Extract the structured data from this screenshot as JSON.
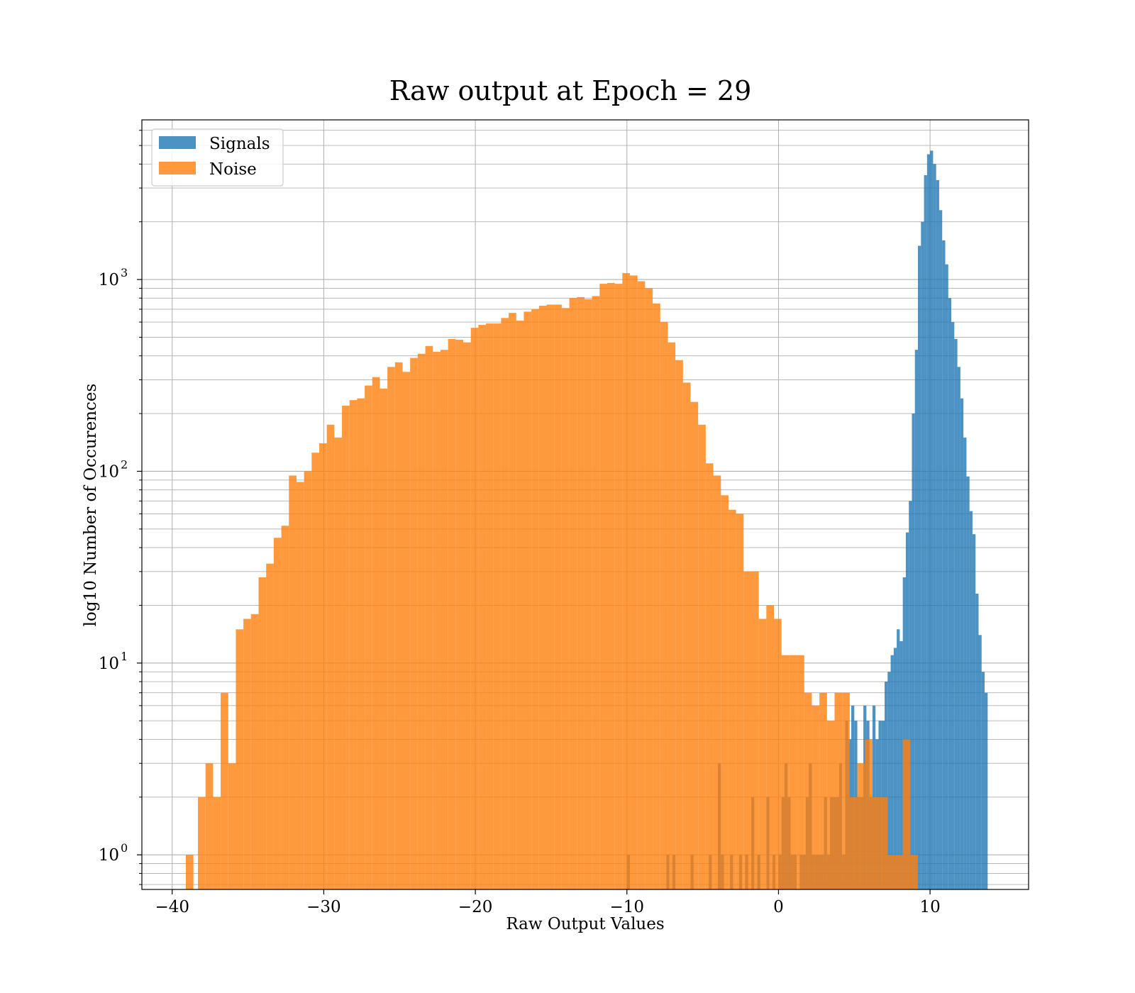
{
  "chart_data": {
    "type": "histogram",
    "title": "Raw output at Epoch = 29",
    "xlabel": "Raw Output Values",
    "ylabel": "log10 Number of Occurences",
    "xlim": [
      -42,
      16.5
    ],
    "ylim": [
      0.66,
      6800
    ],
    "yscale": "log",
    "grid": true,
    "x_ticks": [
      -40,
      -30,
      -20,
      -10,
      0,
      10
    ],
    "x_tick_labels": [
      "−40",
      "−30",
      "−20",
      "−10",
      "0",
      "10"
    ],
    "y_ticks": [
      1,
      10,
      100,
      1000
    ],
    "y_tick_labels": [
      {
        "base": "10",
        "exp": "0"
      },
      {
        "base": "10",
        "exp": "1"
      },
      {
        "base": "10",
        "exp": "2"
      },
      {
        "base": "10",
        "exp": "3"
      }
    ],
    "legend": {
      "placement": "top-left",
      "entries": [
        "Signals",
        "Noise"
      ]
    },
    "series": [
      {
        "name": "Signals",
        "color": "#1f77b4",
        "alpha": 0.8,
        "bins": [
          [
            -10.0,
            -9.8,
            1
          ],
          [
            -7.4,
            -7.2,
            1
          ],
          [
            -7.0,
            -6.8,
            1
          ],
          [
            -5.8,
            -5.6,
            1
          ],
          [
            -4.6,
            -4.4,
            1
          ],
          [
            -4.0,
            -3.8,
            3
          ],
          [
            -3.8,
            -3.6,
            1
          ],
          [
            -3.2,
            -3.0,
            1
          ],
          [
            -2.6,
            -2.4,
            1
          ],
          [
            -2.2,
            -2.0,
            1
          ],
          [
            -1.8,
            -1.6,
            2
          ],
          [
            -1.4,
            -1.2,
            1
          ],
          [
            -0.8,
            -0.6,
            2
          ],
          [
            -0.4,
            -0.2,
            1
          ],
          [
            0.0,
            0.2,
            1
          ],
          [
            0.2,
            0.4,
            2
          ],
          [
            0.4,
            0.6,
            3
          ],
          [
            0.6,
            0.8,
            2
          ],
          [
            0.8,
            1.0,
            1
          ],
          [
            1.0,
            1.2,
            1
          ],
          [
            1.4,
            1.6,
            1
          ],
          [
            1.6,
            1.8,
            1
          ],
          [
            1.8,
            2.0,
            2
          ],
          [
            2.0,
            2.2,
            3
          ],
          [
            2.2,
            2.4,
            1
          ],
          [
            2.4,
            2.6,
            1
          ],
          [
            2.6,
            2.8,
            1
          ],
          [
            2.8,
            3.0,
            1
          ],
          [
            3.0,
            3.2,
            2
          ],
          [
            3.2,
            3.4,
            1
          ],
          [
            3.4,
            3.6,
            2
          ],
          [
            3.6,
            3.8,
            2
          ],
          [
            3.8,
            4.0,
            2
          ],
          [
            4.0,
            4.2,
            3
          ],
          [
            4.2,
            4.4,
            1
          ],
          [
            4.4,
            4.6,
            5
          ],
          [
            4.6,
            4.8,
            4
          ],
          [
            4.8,
            5.0,
            6
          ],
          [
            5.0,
            5.2,
            5
          ],
          [
            5.2,
            5.4,
            2
          ],
          [
            5.4,
            5.6,
            2
          ],
          [
            5.6,
            5.8,
            6
          ],
          [
            5.8,
            6.0,
            5
          ],
          [
            6.0,
            6.2,
            2
          ],
          [
            6.2,
            6.4,
            6
          ],
          [
            6.4,
            6.6,
            4
          ],
          [
            6.6,
            6.8,
            5
          ],
          [
            6.8,
            7.0,
            5
          ],
          [
            7.0,
            7.2,
            8
          ],
          [
            7.2,
            7.4,
            9
          ],
          [
            7.4,
            7.6,
            11
          ],
          [
            7.6,
            7.8,
            12
          ],
          [
            7.8,
            8.0,
            15
          ],
          [
            8.0,
            8.2,
            13
          ],
          [
            8.2,
            8.4,
            28
          ],
          [
            8.4,
            8.6,
            48
          ],
          [
            8.6,
            8.8,
            70
          ],
          [
            8.8,
            9.0,
            200
          ],
          [
            9.0,
            9.2,
            430
          ],
          [
            9.2,
            9.4,
            1500
          ],
          [
            9.4,
            9.6,
            2000
          ],
          [
            9.6,
            9.8,
            3500
          ],
          [
            9.8,
            10.0,
            4500
          ],
          [
            10.0,
            10.2,
            4700
          ],
          [
            10.2,
            10.4,
            4000
          ],
          [
            10.4,
            10.6,
            3300
          ],
          [
            10.6,
            10.8,
            2300
          ],
          [
            10.8,
            11.0,
            1600
          ],
          [
            11.0,
            11.2,
            1200
          ],
          [
            11.2,
            11.4,
            800
          ],
          [
            11.4,
            11.6,
            600
          ],
          [
            11.6,
            11.8,
            490
          ],
          [
            11.8,
            12.0,
            350
          ],
          [
            12.0,
            12.2,
            240
          ],
          [
            12.2,
            12.4,
            150
          ],
          [
            12.4,
            12.6,
            94
          ],
          [
            12.6,
            12.8,
            62
          ],
          [
            12.8,
            13.0,
            47
          ],
          [
            13.0,
            13.2,
            23
          ],
          [
            13.2,
            13.4,
            14
          ],
          [
            13.4,
            13.6,
            9
          ],
          [
            13.6,
            13.8,
            7
          ]
        ]
      },
      {
        "name": "Noise",
        "color": "#ff7f0e",
        "alpha": 0.8,
        "bins": [
          [
            -39.1,
            -38.6,
            1
          ],
          [
            -38.3,
            -37.8,
            2
          ],
          [
            -37.8,
            -37.3,
            3
          ],
          [
            -37.3,
            -36.8,
            2
          ],
          [
            -36.8,
            -36.3,
            7
          ],
          [
            -36.3,
            -35.8,
            3
          ],
          [
            -35.8,
            -35.3,
            15
          ],
          [
            -35.3,
            -34.8,
            17
          ],
          [
            -34.8,
            -34.3,
            18
          ],
          [
            -34.3,
            -33.8,
            28
          ],
          [
            -33.8,
            -33.3,
            33
          ],
          [
            -33.3,
            -32.8,
            45
          ],
          [
            -32.8,
            -32.3,
            52
          ],
          [
            -32.3,
            -31.8,
            95
          ],
          [
            -31.8,
            -31.3,
            88
          ],
          [
            -31.3,
            -30.8,
            100
          ],
          [
            -30.8,
            -30.3,
            125
          ],
          [
            -30.3,
            -29.8,
            140
          ],
          [
            -29.8,
            -29.3,
            175
          ],
          [
            -29.3,
            -28.8,
            150
          ],
          [
            -28.8,
            -28.3,
            220
          ],
          [
            -28.3,
            -27.8,
            235
          ],
          [
            -27.8,
            -27.3,
            240
          ],
          [
            -27.3,
            -26.8,
            280
          ],
          [
            -26.8,
            -26.3,
            310
          ],
          [
            -26.3,
            -25.8,
            270
          ],
          [
            -25.8,
            -25.3,
            350
          ],
          [
            -25.3,
            -24.8,
            370
          ],
          [
            -24.8,
            -24.3,
            330
          ],
          [
            -24.3,
            -23.8,
            390
          ],
          [
            -23.8,
            -23.3,
            410
          ],
          [
            -23.3,
            -22.8,
            450
          ],
          [
            -22.8,
            -22.3,
            420
          ],
          [
            -22.3,
            -21.8,
            430
          ],
          [
            -21.8,
            -21.3,
            490
          ],
          [
            -21.3,
            -20.8,
            485
          ],
          [
            -20.8,
            -20.3,
            470
          ],
          [
            -20.3,
            -19.8,
            560
          ],
          [
            -19.8,
            -19.3,
            580
          ],
          [
            -19.3,
            -18.8,
            590
          ],
          [
            -18.8,
            -18.3,
            590
          ],
          [
            -18.3,
            -17.8,
            630
          ],
          [
            -17.8,
            -17.3,
            670
          ],
          [
            -17.3,
            -16.8,
            610
          ],
          [
            -16.8,
            -16.3,
            680
          ],
          [
            -16.3,
            -15.8,
            700
          ],
          [
            -15.8,
            -15.3,
            730
          ],
          [
            -15.3,
            -14.8,
            740
          ],
          [
            -14.8,
            -14.3,
            740
          ],
          [
            -14.3,
            -13.8,
            710
          ],
          [
            -13.8,
            -13.3,
            800
          ],
          [
            -13.3,
            -12.8,
            810
          ],
          [
            -12.8,
            -12.3,
            790
          ],
          [
            -12.3,
            -11.8,
            820
          ],
          [
            -11.8,
            -11.3,
            950
          ],
          [
            -11.3,
            -10.8,
            960
          ],
          [
            -10.8,
            -10.3,
            950
          ],
          [
            -10.3,
            -9.8,
            1080
          ],
          [
            -9.8,
            -9.3,
            1050
          ],
          [
            -9.3,
            -8.8,
            980
          ],
          [
            -8.8,
            -8.3,
            900
          ],
          [
            -8.3,
            -7.8,
            750
          ],
          [
            -7.8,
            -7.3,
            600
          ],
          [
            -7.3,
            -6.8,
            470
          ],
          [
            -6.8,
            -6.3,
            380
          ],
          [
            -6.3,
            -5.8,
            290
          ],
          [
            -5.8,
            -5.3,
            230
          ],
          [
            -5.3,
            -4.8,
            175
          ],
          [
            -4.8,
            -4.3,
            110
          ],
          [
            -4.3,
            -3.8,
            95
          ],
          [
            -3.8,
            -3.3,
            75
          ],
          [
            -3.3,
            -2.8,
            63
          ],
          [
            -2.8,
            -2.3,
            60
          ],
          [
            -2.3,
            -1.8,
            30
          ],
          [
            -1.8,
            -1.3,
            30
          ],
          [
            -1.3,
            -0.8,
            17
          ],
          [
            -0.8,
            -0.3,
            20
          ],
          [
            -0.3,
            0.2,
            17
          ],
          [
            0.2,
            0.7,
            11
          ],
          [
            0.7,
            1.2,
            11
          ],
          [
            1.2,
            1.7,
            11
          ],
          [
            1.7,
            2.2,
            7
          ],
          [
            2.2,
            2.7,
            6
          ],
          [
            2.7,
            3.2,
            7
          ],
          [
            3.2,
            3.7,
            5
          ],
          [
            3.7,
            4.2,
            7
          ],
          [
            4.2,
            4.7,
            7
          ],
          [
            4.7,
            5.2,
            2
          ],
          [
            5.2,
            5.7,
            3
          ],
          [
            5.7,
            6.2,
            4
          ],
          [
            6.2,
            6.7,
            2
          ],
          [
            6.7,
            7.2,
            2
          ],
          [
            7.2,
            7.7,
            1
          ],
          [
            7.7,
            8.2,
            1
          ],
          [
            8.2,
            8.7,
            4
          ],
          [
            8.7,
            9.2,
            1
          ]
        ]
      }
    ]
  }
}
